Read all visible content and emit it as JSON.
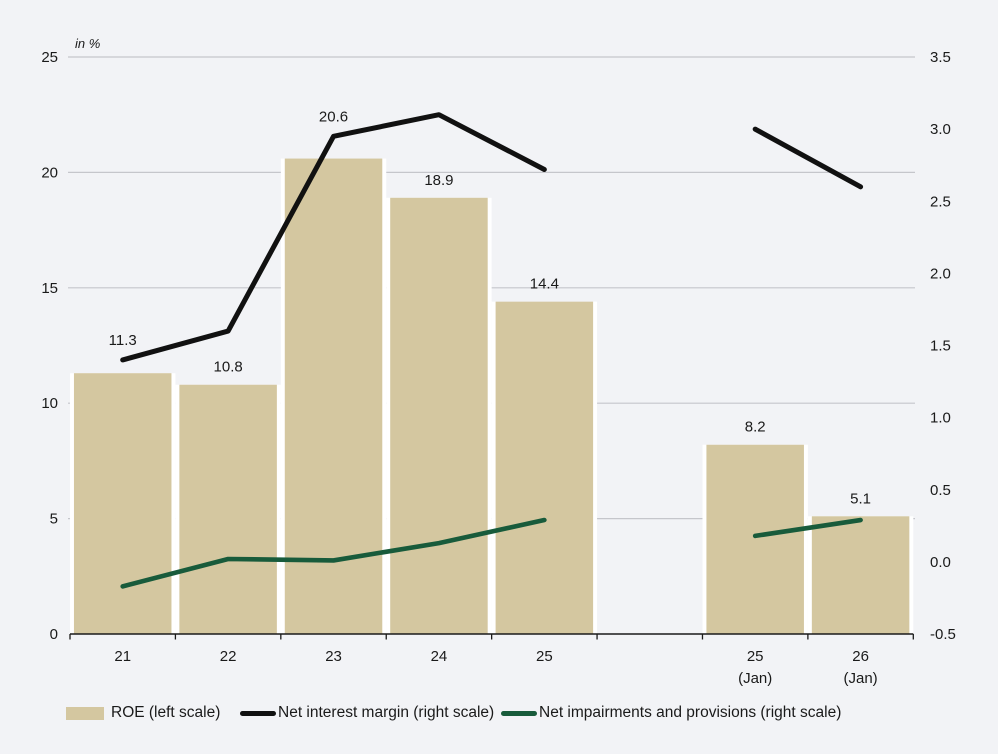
{
  "page": {
    "background": "#f2f3f6"
  },
  "chart_data": {
    "type": "combo-bar-line",
    "title": "",
    "unit_label": "in %",
    "categories": [
      {
        "label": "21",
        "sublabel": ""
      },
      {
        "label": "22",
        "sublabel": ""
      },
      {
        "label": "23",
        "sublabel": ""
      },
      {
        "label": "24",
        "sublabel": ""
      },
      {
        "label": "25",
        "sublabel": ""
      },
      {
        "label": "",
        "sublabel": ""
      },
      {
        "label": "25",
        "sublabel": "(Jan)"
      },
      {
        "label": "26",
        "sublabel": "(Jan)"
      }
    ],
    "series": [
      {
        "name": "ROE (left scale)",
        "type": "bar",
        "axis": "left",
        "color": "#d4c7a0",
        "values": [
          11.3,
          10.8,
          20.6,
          18.9,
          14.4,
          null,
          8.2,
          5.1
        ],
        "data_labels": true
      },
      {
        "name": "Net interest margin (right scale)",
        "type": "line",
        "axis": "right",
        "color": "#111111",
        "stroke_width": 5,
        "values": [
          1.4,
          1.6,
          2.95,
          3.1,
          2.72,
          null,
          3.0,
          2.6
        ],
        "data_labels": false
      },
      {
        "name": "Net impairments and provisions (right scale)",
        "type": "line",
        "axis": "right",
        "color": "#185b3b",
        "stroke_width": 4.6,
        "values": [
          -0.17,
          0.02,
          0.01,
          0.13,
          0.29,
          null,
          0.18,
          0.29
        ],
        "data_labels": false
      }
    ],
    "left_axis": {
      "min": 0,
      "max": 25,
      "ticks": [
        0,
        5,
        10,
        15,
        20,
        25
      ],
      "format": "integer"
    },
    "right_axis": {
      "min": -0.5,
      "max": 3.5,
      "ticks": [
        -0.5,
        0.0,
        0.5,
        1.0,
        1.5,
        2.0,
        2.5,
        3.0,
        3.5
      ],
      "format": "one_decimal"
    },
    "grid": true,
    "grid_color": "#c5c6cb",
    "axis_color": "#1a1a1a",
    "text_color": "#1a1a1a",
    "bar_gap_color": "#ffffff",
    "legend_position": "bottom"
  },
  "legend": {
    "items": [
      {
        "swatch": "bar"
      },
      {
        "swatch": "line-black"
      },
      {
        "swatch": "line-green"
      }
    ]
  }
}
